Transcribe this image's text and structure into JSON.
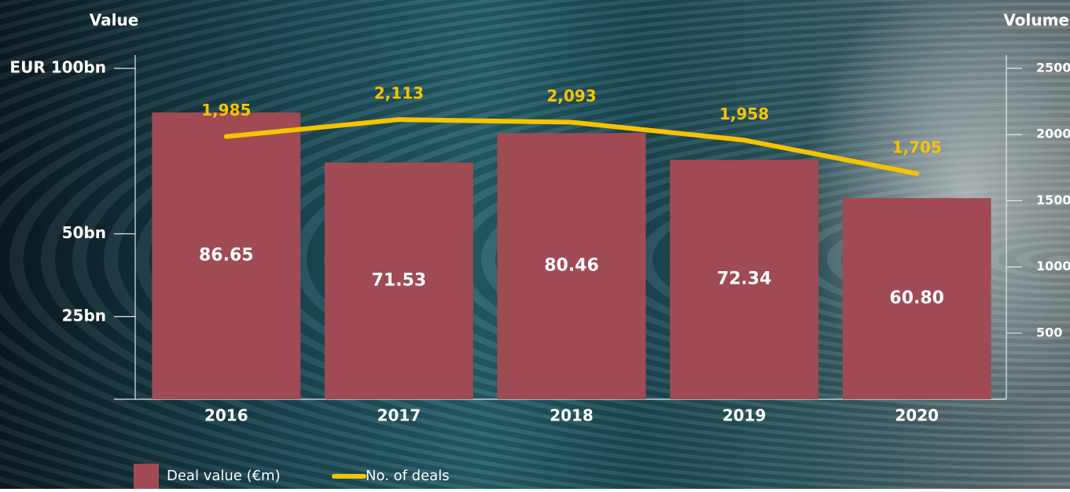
{
  "chart_data": {
    "type": "bar",
    "y_axis_title": "Value",
    "y2_axis_title": "Volume",
    "categories": [
      "2016",
      "2017",
      "2018",
      "2019",
      "2020"
    ],
    "series": [
      {
        "name": "Deal value (€m)",
        "type": "bar",
        "color": "#a04a54",
        "values": [
          86.65,
          71.53,
          80.46,
          72.34,
          60.8
        ],
        "value_labels": [
          "86.65",
          "71.53",
          "80.46",
          "72.34",
          "60.80"
        ]
      },
      {
        "name": "No. of deals",
        "type": "line",
        "axis": "y2",
        "color": "#f5c400",
        "values": [
          1985,
          2113,
          2093,
          1958,
          1705
        ],
        "value_labels": [
          "1,985",
          "2,113",
          "2,093",
          "1,958",
          "1,705"
        ]
      }
    ],
    "ylim": [
      0,
      100
    ],
    "yticks": [
      {
        "value": 100,
        "label": "EUR 100bn"
      },
      {
        "value": 50,
        "label": "50bn"
      },
      {
        "value": 25,
        "label": "25bn"
      }
    ],
    "y2lim": [
      0,
      2500
    ],
    "y2ticks": [
      2500,
      2000,
      1500,
      1000,
      500
    ]
  }
}
